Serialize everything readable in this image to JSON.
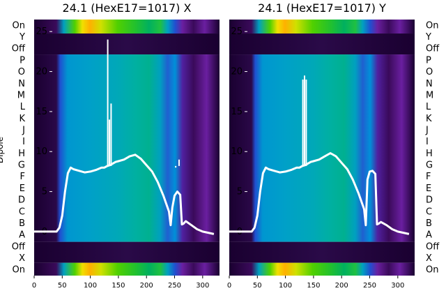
{
  "chart_data": [
    {
      "type": "heatmap",
      "title": "24.1 (HexE17=1017) X",
      "ylabel": "Dipole",
      "dipole_labels": [
        "On",
        "Y",
        "Off",
        "P",
        "O",
        "N",
        "M",
        "L",
        "K",
        "J",
        "I",
        "H",
        "G",
        "F",
        "E",
        "D",
        "C",
        "B",
        "A",
        "Off",
        "X",
        "On"
      ],
      "x_ticks": [
        0,
        50,
        100,
        150,
        200,
        250,
        300
      ],
      "y_ticks": [
        0,
        5,
        10,
        15,
        20,
        25
      ],
      "xlim": [
        0,
        330
      ],
      "ylim": [
        -5.5,
        26.5
      ],
      "trace_color": "#ffffff",
      "colormap": [
        "#0a0014",
        "#3a0a5a",
        "#6a1fa0",
        "#2050d0",
        "#0096d0",
        "#00b89a",
        "#00c060",
        "#30d010",
        "#a0e000",
        "#f0e000",
        "#ff9000"
      ],
      "trace_x": [
        0,
        40,
        45,
        50,
        55,
        60,
        65,
        70,
        80,
        90,
        100,
        110,
        120,
        125,
        130,
        135,
        140,
        145,
        150,
        160,
        170,
        180,
        190,
        200,
        210,
        220,
        230,
        240,
        243,
        246,
        250,
        255,
        260,
        263,
        266,
        270,
        280,
        290,
        300,
        320
      ],
      "trace_y": [
        0,
        0,
        0.5,
        2,
        5,
        7.3,
        8,
        7.8,
        7.6,
        7.4,
        7.5,
        7.7,
        8,
        8,
        8.2,
        8.3,
        8.5,
        8.7,
        8.8,
        9,
        9.4,
        9.6,
        9.1,
        8.3,
        7.5,
        6.2,
        4.5,
        2.5,
        0.8,
        3,
        4.5,
        5,
        4.6,
        0.9,
        1,
        1.3,
        0.8,
        0.3,
        0,
        -0.3
      ],
      "spikes": [
        {
          "x": 131,
          "y": 24
        },
        {
          "x": 134,
          "y": 14
        },
        {
          "x": 137,
          "y": 16
        },
        {
          "x": 252,
          "y": 8
        },
        {
          "x": 258,
          "y": 9
        }
      ]
    },
    {
      "type": "heatmap",
      "title": "24.1 (HexE17=1017) Y",
      "ylabel": "",
      "dipole_labels": [
        "On",
        "Y",
        "Off",
        "P",
        "O",
        "N",
        "M",
        "L",
        "K",
        "J",
        "I",
        "H",
        "G",
        "F",
        "E",
        "D",
        "C",
        "B",
        "A",
        "Off",
        "X",
        "On"
      ],
      "x_ticks": [
        0,
        50,
        100,
        150,
        200,
        250,
        300
      ],
      "y_ticks": [
        0,
        5,
        10,
        15,
        20,
        25
      ],
      "xlim": [
        0,
        330
      ],
      "ylim": [
        -5.5,
        26.5
      ],
      "trace_color": "#ffffff",
      "colormap": [
        "#0a0014",
        "#3a0a5a",
        "#6a1fa0",
        "#2050d0",
        "#0096d0",
        "#00b89a",
        "#00c060",
        "#30d010",
        "#a0e000",
        "#f0e000",
        "#ff9000"
      ],
      "trace_x": [
        0,
        40,
        45,
        50,
        55,
        60,
        65,
        70,
        80,
        90,
        100,
        110,
        120,
        125,
        130,
        135,
        140,
        145,
        150,
        160,
        170,
        180,
        190,
        200,
        210,
        220,
        230,
        240,
        243,
        246,
        250,
        255,
        260,
        263,
        266,
        270,
        280,
        290,
        300,
        320
      ],
      "trace_y": [
        0,
        0,
        0.5,
        2,
        5,
        7.3,
        8,
        7.8,
        7.6,
        7.4,
        7.5,
        7.7,
        8,
        8,
        8.2,
        8.3,
        8.5,
        8.7,
        8.8,
        9,
        9.4,
        9.8,
        9.4,
        8.6,
        7.8,
        6.5,
        4.8,
        2.8,
        0.8,
        6.5,
        7.5,
        7.6,
        7.2,
        0.9,
        1,
        1.2,
        0.8,
        0.3,
        0,
        -0.3
      ],
      "spikes": [
        {
          "x": 131,
          "y": 19
        },
        {
          "x": 134,
          "y": 19.5
        },
        {
          "x": 137,
          "y": 19
        }
      ]
    }
  ]
}
